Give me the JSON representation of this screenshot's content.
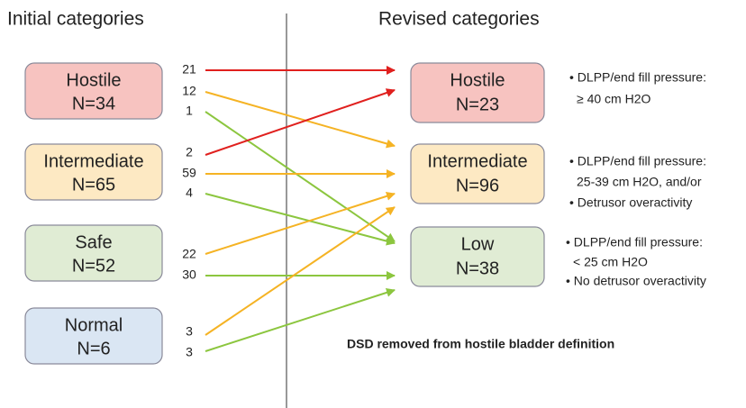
{
  "header": {
    "left": "Initial categories",
    "right": "Revised categories"
  },
  "left_nodes": [
    {
      "label": "Hostile",
      "n": "N=34"
    },
    {
      "label": "Intermediate",
      "n": "N=65"
    },
    {
      "label": "Safe",
      "n": "N=52"
    },
    {
      "label": "Normal",
      "n": "N=6"
    }
  ],
  "right_nodes": [
    {
      "label": "Hostile",
      "n": "N=23"
    },
    {
      "label": "Intermediate",
      "n": "N=96"
    },
    {
      "label": "Low",
      "n": "N=38"
    }
  ],
  "flows": [
    21,
    12,
    1,
    2,
    59,
    4,
    22,
    30,
    3,
    3
  ],
  "notes": [
    [
      "• DLPP/end fill pressure:",
      "≥ 40 cm H2O"
    ],
    [
      "• DLPP/end fill pressure:",
      "25-39 cm H2O, and/or",
      "• Detrusor overactivity"
    ],
    [
      "• DLPP/end fill pressure:",
      "< 25 cm H2O",
      "• No detrusor overactivity"
    ]
  ],
  "footnote": "DSD removed from hostile bladder definition"
}
